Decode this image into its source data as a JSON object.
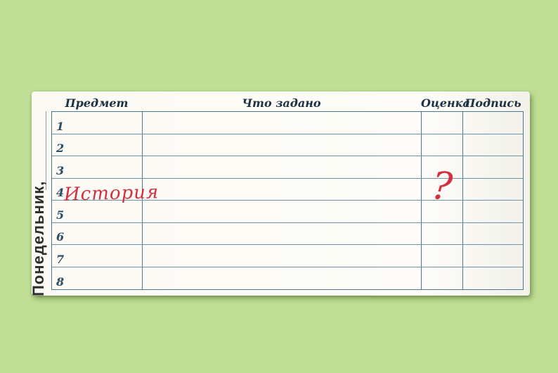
{
  "canvas": {
    "background_color": "#c0df95",
    "paper_color": "#fbfaf4"
  },
  "diary": {
    "day_label": "Понедельник,",
    "headers": [
      {
        "key": "subject",
        "label": "Предмет"
      },
      {
        "key": "homework",
        "label": "Что задано"
      },
      {
        "key": "grade",
        "label": "Оценка"
      },
      {
        "key": "signature",
        "label": "Подпись"
      }
    ],
    "rows": [
      {
        "num": "1",
        "subject": "",
        "homework": "",
        "grade": "",
        "signature": ""
      },
      {
        "num": "2",
        "subject": "",
        "homework": "",
        "grade": "",
        "signature": ""
      },
      {
        "num": "3",
        "subject": "",
        "homework": "",
        "grade": "",
        "signature": ""
      },
      {
        "num": "4",
        "subject": "История",
        "homework": "",
        "grade": "?",
        "signature": ""
      },
      {
        "num": "5",
        "subject": "",
        "homework": "",
        "grade": "",
        "signature": ""
      },
      {
        "num": "6",
        "subject": "",
        "homework": "",
        "grade": "",
        "signature": ""
      },
      {
        "num": "7",
        "subject": "",
        "homework": "",
        "grade": "",
        "signature": ""
      },
      {
        "num": "8",
        "subject": "",
        "homework": "",
        "grade": "",
        "signature": ""
      }
    ],
    "colors": {
      "handwriting_red": "#d2303f",
      "grid_line_dark": "#4d7894",
      "grid_line_light": "#6b93ab",
      "header_text": "#1d3242",
      "row_number_text": "#2d4c66",
      "day_label_text": "#2b2d2f"
    }
  }
}
